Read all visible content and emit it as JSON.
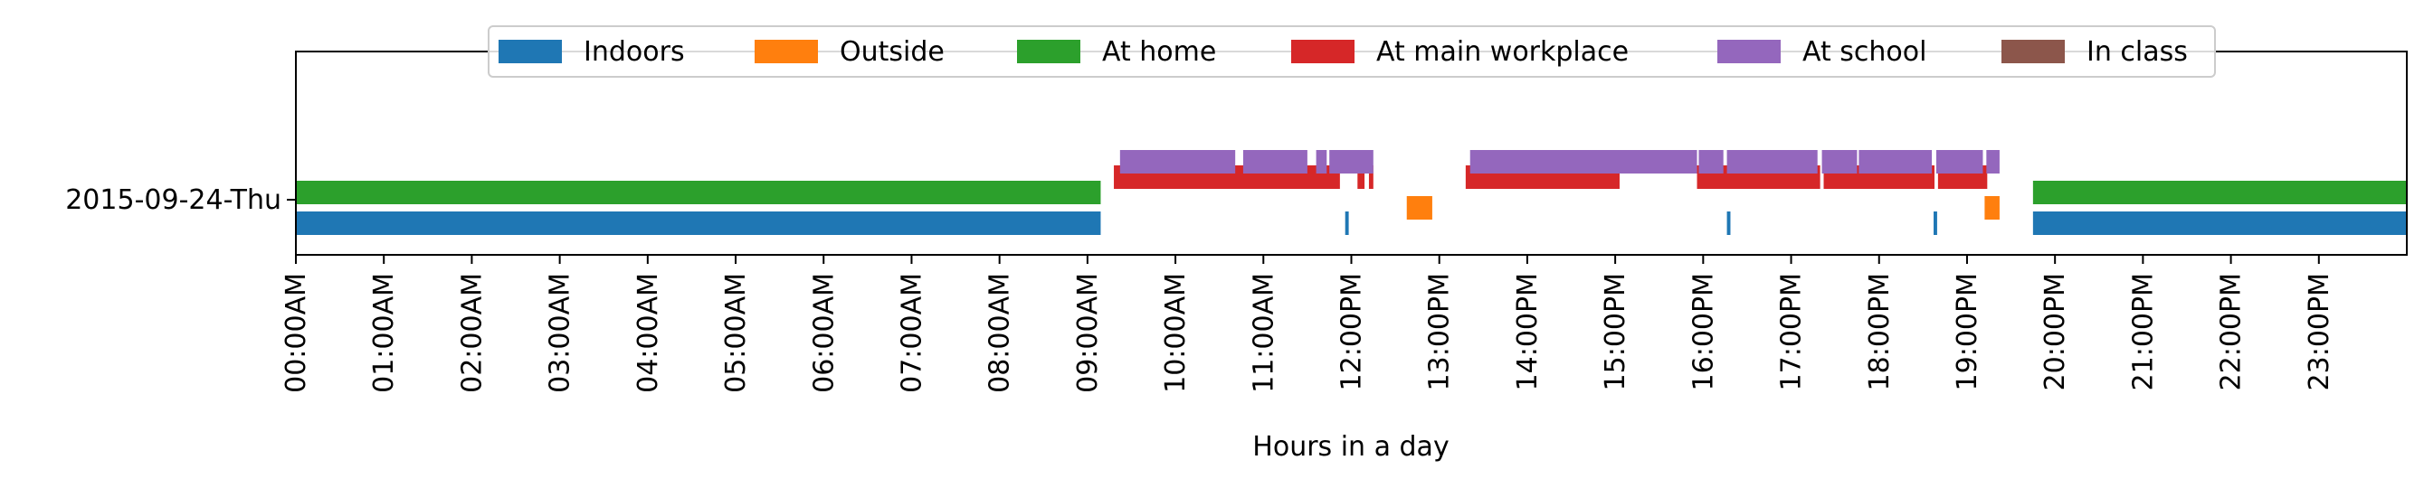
{
  "chart_data": {
    "type": "timeline",
    "title": "",
    "xlabel": "Hours in a day",
    "ylabel": "",
    "x_unit": "hours",
    "xlim": [
      0,
      24
    ],
    "x_ticks": [
      {
        "value": 0,
        "label": "00:00AM"
      },
      {
        "value": 1,
        "label": "01:00AM"
      },
      {
        "value": 2,
        "label": "02:00AM"
      },
      {
        "value": 3,
        "label": "03:00AM"
      },
      {
        "value": 4,
        "label": "04:00AM"
      },
      {
        "value": 5,
        "label": "05:00AM"
      },
      {
        "value": 6,
        "label": "06:00AM"
      },
      {
        "value": 7,
        "label": "07:00AM"
      },
      {
        "value": 8,
        "label": "08:00AM"
      },
      {
        "value": 9,
        "label": "09:00AM"
      },
      {
        "value": 10,
        "label": "10:00AM"
      },
      {
        "value": 11,
        "label": "11:00AM"
      },
      {
        "value": 12,
        "label": "12:00PM"
      },
      {
        "value": 13,
        "label": "13:00PM"
      },
      {
        "value": 14,
        "label": "14:00PM"
      },
      {
        "value": 15,
        "label": "15:00PM"
      },
      {
        "value": 16,
        "label": "16:00PM"
      },
      {
        "value": 17,
        "label": "17:00PM"
      },
      {
        "value": 18,
        "label": "18:00PM"
      },
      {
        "value": 19,
        "label": "19:00PM"
      },
      {
        "value": 20,
        "label": "20:00PM"
      },
      {
        "value": 21,
        "label": "21:00PM"
      },
      {
        "value": 22,
        "label": "22:00PM"
      },
      {
        "value": 23,
        "label": "23:00PM"
      }
    ],
    "y_categories": [
      "2015-09-24-Thu"
    ],
    "grid": false,
    "legend_position": "top-center",
    "series": [
      {
        "name": "Indoors",
        "color": "#1f77b4",
        "lane": 0,
        "intervals": [
          [
            0.0,
            9.15
          ],
          [
            11.93,
            11.97
          ],
          [
            16.27,
            16.31
          ],
          [
            18.62,
            18.66
          ],
          [
            19.75,
            24.0
          ]
        ]
      },
      {
        "name": "Outside",
        "color": "#ff7f0e",
        "lane": 1,
        "intervals": [
          [
            12.63,
            12.92
          ],
          [
            19.2,
            19.37
          ]
        ]
      },
      {
        "name": "At home",
        "color": "#2ca02c",
        "lane": 2,
        "intervals": [
          [
            0.0,
            9.15
          ],
          [
            19.75,
            24.0
          ]
        ]
      },
      {
        "name": "At main workplace",
        "color": "#d62728",
        "lane": 3,
        "intervals": [
          [
            9.3,
            11.87
          ],
          [
            12.07,
            12.15
          ],
          [
            12.2,
            12.25
          ],
          [
            13.3,
            15.05
          ],
          [
            15.93,
            17.33
          ],
          [
            17.37,
            18.63
          ],
          [
            18.67,
            19.23
          ]
        ]
      },
      {
        "name": "At school",
        "color": "#9467bd",
        "lane": 4,
        "intervals": [
          [
            9.37,
            10.68
          ],
          [
            10.77,
            11.5
          ],
          [
            11.6,
            11.72
          ],
          [
            11.75,
            12.25
          ],
          [
            13.35,
            15.93
          ],
          [
            15.95,
            16.23
          ],
          [
            16.27,
            17.3
          ],
          [
            17.35,
            17.75
          ],
          [
            17.77,
            18.6
          ],
          [
            18.65,
            19.18
          ],
          [
            19.22,
            19.37
          ]
        ]
      },
      {
        "name": "In class",
        "color": "#8c564b",
        "lane": 5,
        "intervals": []
      }
    ]
  }
}
